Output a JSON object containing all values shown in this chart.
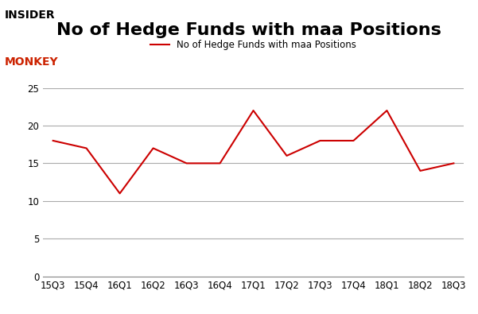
{
  "x_labels": [
    "15Q3",
    "15Q4",
    "16Q1",
    "16Q2",
    "16Q3",
    "16Q4",
    "17Q1",
    "17Q2",
    "17Q3",
    "17Q4",
    "18Q1",
    "18Q2",
    "18Q3"
  ],
  "y_values": [
    18,
    17,
    11,
    17,
    15,
    15,
    22,
    16,
    18,
    18,
    22,
    14,
    15
  ],
  "line_color": "#cc0000",
  "title": "No of Hedge Funds with maa Positions",
  "legend_label": "No of Hedge Funds with maa Positions",
  "y_ticks": [
    0,
    5,
    10,
    15,
    20,
    25
  ],
  "ylim": [
    0,
    25
  ],
  "title_fontsize": 16,
  "legend_fontsize": 8.5,
  "tick_fontsize": 8.5,
  "background_color": "#ffffff",
  "grid_color": "#aaaaaa"
}
